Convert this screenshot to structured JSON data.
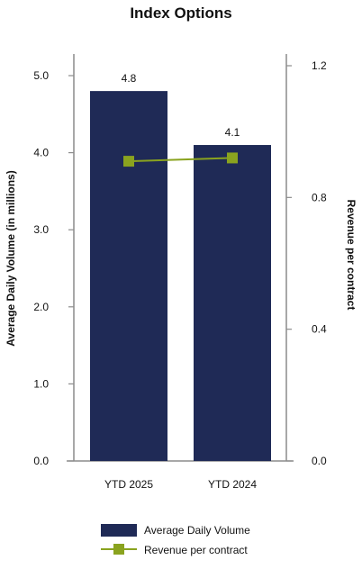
{
  "chart_data": {
    "type": "bar",
    "title": "Index Options",
    "categories": [
      "YTD 2025",
      "YTD 2024"
    ],
    "series": [
      {
        "name": "Average Daily Volume",
        "type": "bar",
        "axis": "left",
        "values": [
          4.8,
          4.1
        ],
        "labels": [
          "4.8",
          "4.1"
        ],
        "color": "#1f2a56"
      },
      {
        "name": "Revenue per contract",
        "type": "line",
        "axis": "right",
        "values": [
          0.91,
          0.92
        ],
        "color": "#8aa31f"
      }
    ],
    "ylabel": "Average Daily Volume (in millions)",
    "ylim": [
      0,
      5.0
    ],
    "yticks": [
      "0.0",
      "1.0",
      "2.0",
      "3.0",
      "4.0",
      "5.0"
    ],
    "y2label": "Revenue per contract",
    "y2lim": [
      0,
      1.2
    ],
    "y2ticks": [
      "0.0",
      "0.4",
      "0.8",
      "1.2"
    ],
    "grid": false,
    "legend": "bottom"
  }
}
